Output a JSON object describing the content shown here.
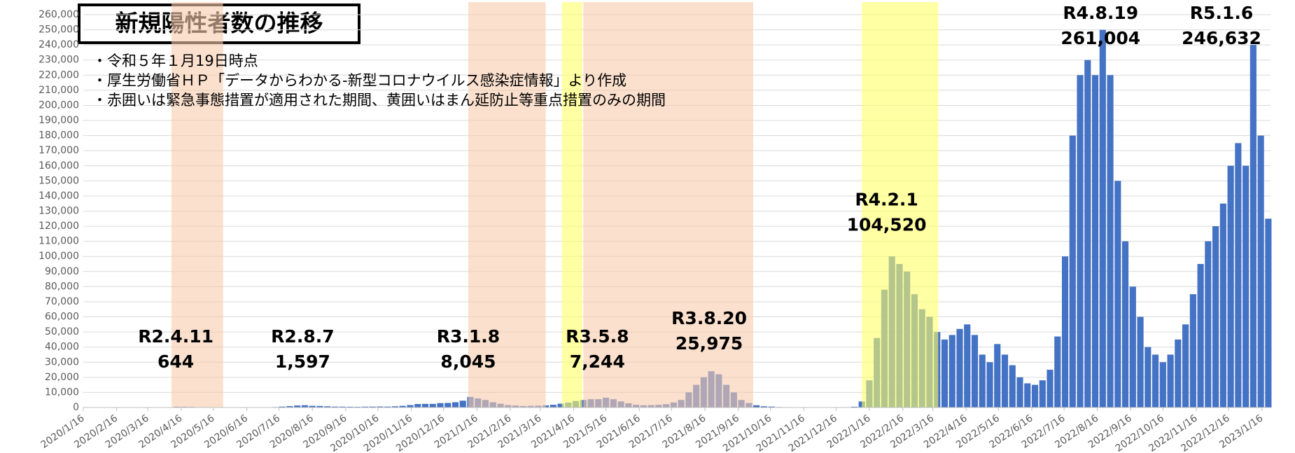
{
  "chart_data": {
    "type": "bar",
    "title": "新規陽性者数の推移",
    "notes": [
      "・令和５年１月19日時点",
      "・厚生労働省ＨＰ「データからわかる-新型コロナウイルス感染症情報」より作成",
      "・赤囲いは緊急事態措置が適用された期間、黄囲いはまん延防止等重点措置のみの期間"
    ],
    "color": "#4472c4",
    "grid": true,
    "xlim": [
      "2020/1/16",
      "2023/1/24"
    ],
    "ylim": [
      0,
      260000
    ],
    "yticks": [
      0,
      {
        "value": 10000,
        "label": "10,000"
      },
      {
        "value": 20000,
        "label": "20,000"
      },
      {
        "value": 30000,
        "label": "30,000"
      },
      {
        "value": 40000,
        "label": "40,000"
      },
      {
        "value": 50000,
        "label": "50,000"
      },
      {
        "value": 60000,
        "label": "60,000"
      },
      {
        "value": 70000,
        "label": "70,000"
      },
      {
        "value": 80000,
        "label": "80,000"
      },
      {
        "value": 90000,
        "label": "90,000"
      },
      {
        "value": 100000,
        "label": "100,000"
      },
      {
        "value": 110000,
        "label": "110,000"
      },
      {
        "value": 120000,
        "label": "120,000"
      },
      {
        "value": 130000,
        "label": "130,000"
      },
      {
        "value": 140000,
        "label": "140,000"
      },
      {
        "value": 150000,
        "label": "150,000"
      },
      {
        "value": 160000,
        "label": "160,000"
      },
      {
        "value": 170000,
        "label": "170,000"
      },
      {
        "value": 180000,
        "label": "180,000"
      },
      {
        "value": 190000,
        "label": "190,000"
      },
      {
        "value": 200000,
        "label": "200,000"
      },
      {
        "value": 210000,
        "label": "210,000"
      },
      {
        "value": 220000,
        "label": "220,000"
      },
      {
        "value": 230000,
        "label": "230,000"
      },
      {
        "value": 240000,
        "label": "240,000"
      },
      {
        "value": 250000,
        "label": "250,000"
      },
      {
        "value": 260000,
        "label": "260,000"
      }
    ],
    "xticks": [
      "2020/1/16",
      "2020/2/16",
      "2020/3/16",
      "2020/4/16",
      "2020/5/16",
      "2020/6/16",
      "2020/7/16",
      "2020/8/16",
      "2020/9/16",
      "2020/10/16",
      "2020/11/16",
      "2020/12/16",
      "2021/1/16",
      "2021/2/16",
      "2021/3/16",
      "2021/4/16",
      "2021/5/16",
      "2021/6/16",
      "2021/7/16",
      "2021/8/16",
      "2021/9/16",
      "2021/10/16",
      "2021/11/16",
      "2021/12/16",
      "2022/1/16",
      "2022/2/16",
      "2022/3/16",
      "2022/4/16",
      "2022/5/16",
      "2022/6/16",
      "2022/7/16",
      "2022/8/16",
      "2022/9/16",
      "2022/10/16",
      "2022/11/16",
      "2022/12/16",
      "2023/1/16"
    ],
    "periods": [
      {
        "start": "2020/4/7",
        "end": "2020/5/25",
        "color": "#f8cbad"
      },
      {
        "start": "2021/1/8",
        "end": "2021/3/21",
        "color": "#f8cbad"
      },
      {
        "start": "2021/4/5",
        "end": "2021/4/24",
        "color": "#ffff66"
      },
      {
        "start": "2021/4/25",
        "end": "2021/9/30",
        "color": "#f8cbad"
      },
      {
        "start": "2022/1/9",
        "end": "2022/3/21",
        "color": "#ffff66"
      }
    ],
    "annotations": [
      {
        "text": "R2.4.11",
        "x": "2020/4/11",
        "value": 644,
        "value_label": "644"
      },
      {
        "text": "R2.8.7",
        "x": "2020/8/7",
        "value": 1597,
        "value_label": "1,597"
      },
      {
        "text": "R3.1.8",
        "x": "2021/1/8",
        "value": 8045,
        "value_label": "8,045"
      },
      {
        "text": "R3.5.8",
        "x": "2021/5/8",
        "value": 7244,
        "value_label": "7,244"
      },
      {
        "text": "R3.8.20",
        "x": "2021/8/20",
        "value": 25975,
        "value_label": "25,975"
      },
      {
        "text": "R4.2.1",
        "x": "2022/2/1",
        "value": 104520,
        "value_label": "104,520"
      },
      {
        "text": "R4.8.19",
        "x": "2022/8/19",
        "value": 261004,
        "value_label": "261,004"
      },
      {
        "text": "R5.1.6",
        "x": "2023/1/6",
        "value": 246632,
        "value_label": "246,632"
      }
    ],
    "x": [
      "2020/1/16",
      "2020/1/23",
      "2020/1/30",
      "2020/2/6",
      "2020/2/13",
      "2020/2/20",
      "2020/2/27",
      "2020/3/5",
      "2020/3/12",
      "2020/3/19",
      "2020/3/26",
      "2020/4/2",
      "2020/4/9",
      "2020/4/16",
      "2020/4/23",
      "2020/4/30",
      "2020/5/7",
      "2020/5/14",
      "2020/5/21",
      "2020/5/28",
      "2020/6/4",
      "2020/6/11",
      "2020/6/18",
      "2020/6/25",
      "2020/7/2",
      "2020/7/9",
      "2020/7/16",
      "2020/7/23",
      "2020/7/30",
      "2020/8/6",
      "2020/8/13",
      "2020/8/20",
      "2020/8/27",
      "2020/9/3",
      "2020/9/10",
      "2020/9/17",
      "2020/9/24",
      "2020/10/1",
      "2020/10/8",
      "2020/10/15",
      "2020/10/22",
      "2020/10/29",
      "2020/11/5",
      "2020/11/12",
      "2020/11/19",
      "2020/11/26",
      "2020/12/3",
      "2020/12/10",
      "2020/12/17",
      "2020/12/24",
      "2020/12/31",
      "2021/1/7",
      "2021/1/14",
      "2021/1/21",
      "2021/1/28",
      "2021/2/4",
      "2021/2/11",
      "2021/2/18",
      "2021/2/25",
      "2021/3/4",
      "2021/3/11",
      "2021/3/18",
      "2021/3/25",
      "2021/4/1",
      "2021/4/8",
      "2021/4/15",
      "2021/4/22",
      "2021/4/29",
      "2021/5/6",
      "2021/5/13",
      "2021/5/20",
      "2021/5/27",
      "2021/6/3",
      "2021/6/10",
      "2021/6/17",
      "2021/6/24",
      "2021/7/1",
      "2021/7/8",
      "2021/7/15",
      "2021/7/22",
      "2021/7/29",
      "2021/8/5",
      "2021/8/12",
      "2021/8/19",
      "2021/8/26",
      "2021/9/2",
      "2021/9/9",
      "2021/9/16",
      "2021/9/23",
      "2021/9/30",
      "2021/10/7",
      "2021/10/14",
      "2021/10/21",
      "2021/10/28",
      "2021/11/4",
      "2021/11/11",
      "2021/11/18",
      "2021/11/25",
      "2021/12/2",
      "2021/12/9",
      "2021/12/16",
      "2021/12/23",
      "2021/12/30",
      "2022/1/6",
      "2022/1/13",
      "2022/1/20",
      "2022/1/27",
      "2022/2/3",
      "2022/2/10",
      "2022/2/17",
      "2022/2/24",
      "2022/3/3",
      "2022/3/10",
      "2022/3/17",
      "2022/3/24",
      "2022/3/31",
      "2022/4/7",
      "2022/4/14",
      "2022/4/21",
      "2022/4/28",
      "2022/5/5",
      "2022/5/12",
      "2022/5/19",
      "2022/5/26",
      "2022/6/2",
      "2022/6/9",
      "2022/6/16",
      "2022/6/23",
      "2022/6/30",
      "2022/7/7",
      "2022/7/14",
      "2022/7/21",
      "2022/7/28",
      "2022/8/4",
      "2022/8/11",
      "2022/8/18",
      "2022/8/25",
      "2022/9/1",
      "2022/9/8",
      "2022/9/15",
      "2022/9/22",
      "2022/9/29",
      "2022/10/6",
      "2022/10/13",
      "2022/10/20",
      "2022/10/27",
      "2022/11/3",
      "2022/11/10",
      "2022/11/17",
      "2022/11/24",
      "2022/12/1",
      "2022/12/8",
      "2022/12/15",
      "2022/12/22",
      "2022/12/29",
      "2023/1/5",
      "2023/1/12",
      "2023/1/19"
    ],
    "values": [
      0,
      0,
      2,
      0,
      5,
      15,
      20,
      30,
      50,
      40,
      100,
      230,
      550,
      500,
      400,
      200,
      100,
      50,
      30,
      20,
      40,
      40,
      60,
      80,
      150,
      300,
      600,
      900,
      1300,
      1500,
      1100,
      1000,
      800,
      600,
      550,
      500,
      450,
      550,
      600,
      650,
      600,
      800,
      1100,
      1600,
      2300,
      2400,
      2400,
      2900,
      3000,
      3500,
      4500,
      7000,
      6000,
      5000,
      3500,
      2500,
      1600,
      1300,
      1000,
      1100,
      1200,
      1400,
      1800,
      2500,
      3300,
      4300,
      5000,
      5500,
      5500,
      6500,
      5500,
      4000,
      2800,
      1800,
      1500,
      1600,
      1800,
      2200,
      3300,
      5000,
      10000,
      15000,
      20000,
      24000,
      22000,
      15000,
      10000,
      5000,
      3000,
      1500,
      800,
      600,
      300,
      250,
      200,
      180,
      150,
      100,
      120,
      150,
      180,
      250,
      500,
      4000,
      18000,
      46000,
      78000,
      100000,
      95000,
      90000,
      75000,
      65000,
      60000,
      50000,
      45000,
      48000,
      52000,
      55000,
      48000,
      35000,
      30000,
      42000,
      35000,
      28000,
      20000,
      16000,
      15000,
      18000,
      25000,
      47000,
      100000,
      180000,
      220000,
      230000,
      220000,
      250000,
      220000,
      150000,
      110000,
      80000,
      60000,
      40000,
      35000,
      30000,
      35000,
      45000,
      55000,
      75000,
      95000,
      110000,
      120000,
      135000,
      160000,
      175000,
      160000,
      240000,
      180000,
      125000
    ]
  }
}
